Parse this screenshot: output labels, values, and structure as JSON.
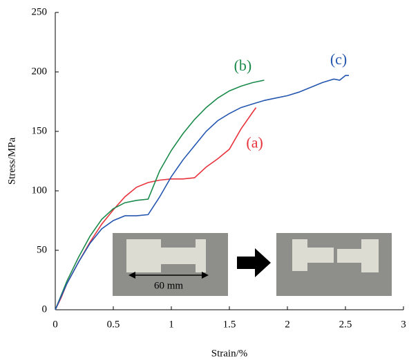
{
  "chart_data": {
    "type": "line",
    "x_label": "Strain/%",
    "y_label": "Stress/MPa",
    "xlim": [
      0,
      3
    ],
    "ylim": [
      0,
      250
    ],
    "xticks": [
      0,
      0.5,
      1,
      1.5,
      2,
      2.5,
      3
    ],
    "yticks": [
      0,
      50,
      100,
      150,
      200,
      250
    ],
    "grid": false,
    "series": [
      {
        "name": "(a)",
        "color": "#e8323c",
        "x": [
          0,
          0.05,
          0.1,
          0.2,
          0.3,
          0.4,
          0.5,
          0.6,
          0.7,
          0.8,
          0.9,
          1.0,
          1.1,
          1.2,
          1.3,
          1.4,
          1.5,
          1.6,
          1.7,
          1.73
        ],
        "values": [
          0,
          10,
          22,
          40,
          57,
          72,
          84,
          95,
          103,
          107,
          109,
          110,
          110,
          111,
          120,
          127,
          135,
          152,
          166,
          170
        ]
      },
      {
        "name": "(b)",
        "color": "#1a8a4a",
        "x": [
          0,
          0.05,
          0.1,
          0.2,
          0.3,
          0.4,
          0.5,
          0.6,
          0.7,
          0.8,
          0.85,
          0.9,
          1.0,
          1.1,
          1.2,
          1.3,
          1.4,
          1.5,
          1.6,
          1.7,
          1.8
        ],
        "values": [
          0,
          12,
          24,
          44,
          62,
          76,
          85,
          90,
          92,
          93,
          105,
          117,
          134,
          148,
          160,
          170,
          178,
          184,
          188,
          191,
          193
        ]
      },
      {
        "name": "(c)",
        "color": "#2456b0",
        "x": [
          0,
          0.05,
          0.1,
          0.2,
          0.3,
          0.4,
          0.5,
          0.6,
          0.7,
          0.8,
          0.9,
          1.0,
          1.1,
          1.2,
          1.3,
          1.4,
          1.5,
          1.6,
          1.7,
          1.8,
          1.9,
          2.0,
          2.1,
          2.2,
          2.3,
          2.4,
          2.45,
          2.5,
          2.53
        ],
        "values": [
          0,
          11,
          22,
          40,
          56,
          68,
          75,
          79,
          79,
          80,
          95,
          112,
          126,
          138,
          150,
          159,
          165,
          170,
          173,
          176,
          178,
          180,
          183,
          187,
          191,
          194,
          193,
          197,
          197
        ]
      }
    ],
    "inset_label": "60 mm"
  }
}
